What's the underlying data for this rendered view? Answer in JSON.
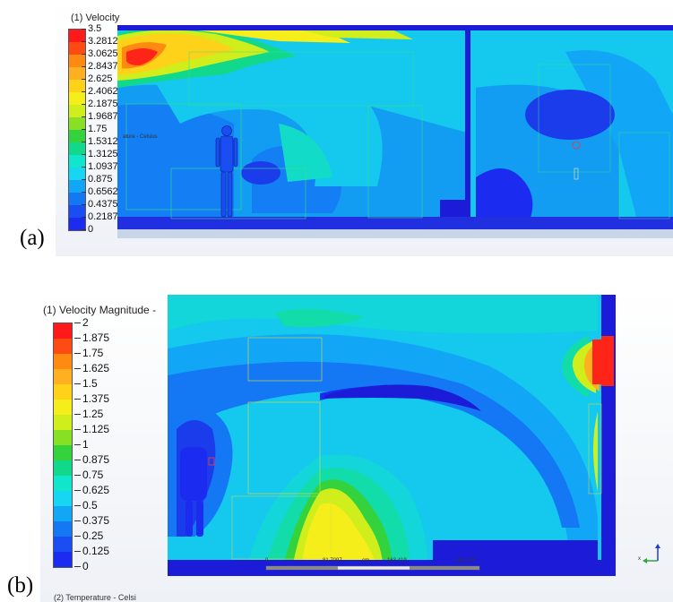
{
  "panels": {
    "a": {
      "label": "(a)",
      "legend_title": "(1) Velocity",
      "legend_values": [
        "3.5",
        "3.2812",
        "3.0625",
        "2.8437",
        "2.625",
        "2.4062",
        "2.1875",
        "1.9687",
        "1.75",
        "1.5312",
        "1.3125",
        "1.0937",
        "0.875",
        "0.6562",
        "0.4375",
        "0.2187",
        "0"
      ]
    },
    "b": {
      "label": "(b)",
      "legend_title": "(1) Velocity Magnitude -",
      "legend_values": [
        "2",
        "1.875",
        "1.75",
        "1.625",
        "1.5",
        "1.375",
        "1.25",
        "1.125",
        "1",
        "0.875",
        "0.75",
        "0.625",
        "0.5",
        "0.375",
        "0.25",
        "0.125",
        "0"
      ],
      "second_legend_title": "(2) Temperature - Celsi",
      "scale_bar": {
        "ticks": [
          "0",
          "81.7097",
          "163.419",
          "245.129"
        ],
        "unit": "cm"
      },
      "axis_triad": {
        "x": "x",
        "z": "z"
      }
    }
  },
  "colors": {
    "ramp": [
      "#ff1a1a",
      "#ff4a14",
      "#ff8a12",
      "#ffb020",
      "#ffd21a",
      "#f6ee1a",
      "#cfee1c",
      "#88e024",
      "#34d23c",
      "#12d88c",
      "#10e6cc",
      "#16d6f2",
      "#12a6f6",
      "#1478f4",
      "#1a4ef2",
      "#1b2cf0",
      "#1c1cd8"
    ]
  }
}
